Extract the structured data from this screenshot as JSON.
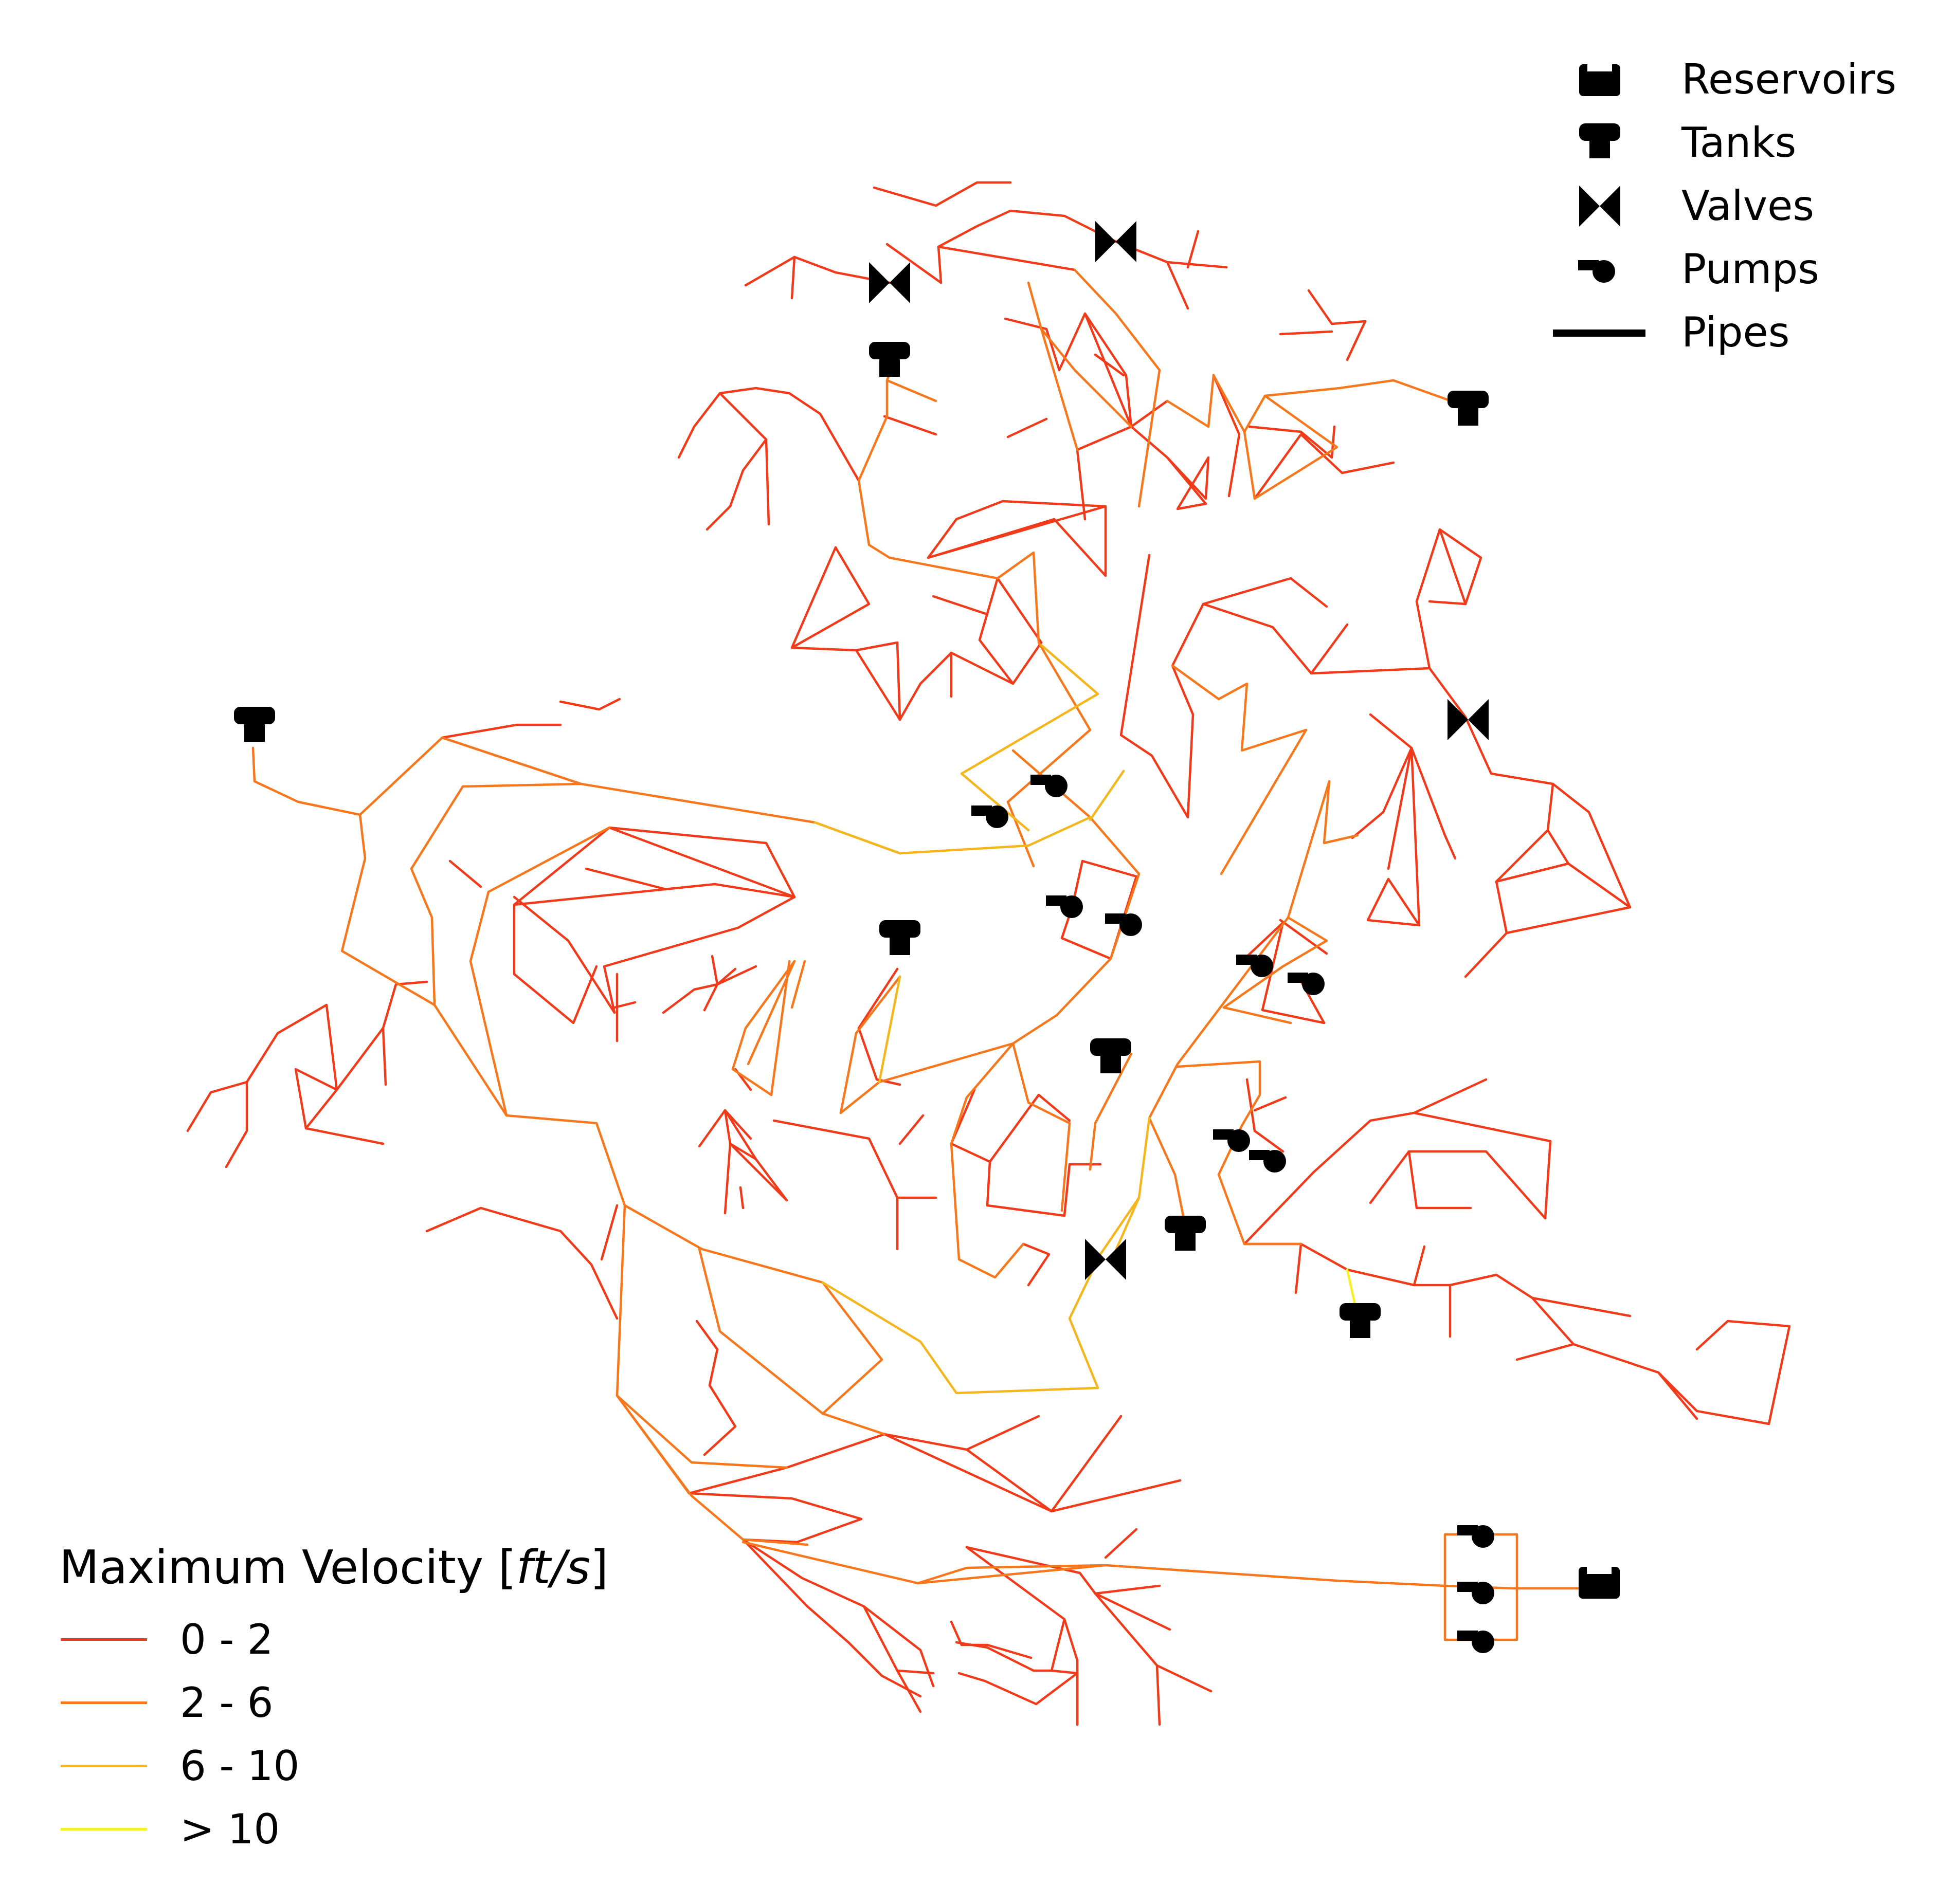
{
  "legend_symbols": {
    "reservoirs": {
      "label": "Reservoirs",
      "icon": "reservoir-icon"
    },
    "tanks": {
      "label": "Tanks",
      "icon": "tank-icon"
    },
    "valves": {
      "label": "Valves",
      "icon": "valve-icon"
    },
    "pumps": {
      "label": "Pumps",
      "icon": "pump-icon"
    },
    "pipes": {
      "label": "Pipes",
      "icon": "pipe-line-icon"
    }
  },
  "velocity_legend": {
    "title_prefix": "Maximum Velocity [",
    "title_unit": "ft/s",
    "title_suffix": "]",
    "classes": [
      {
        "label": "0 - 2",
        "color": "#f03a1a"
      },
      {
        "label": "2 - 6",
        "color": "#f7771c"
      },
      {
        "label": "6 - 10",
        "color": "#f5b61d"
      },
      {
        "label": "> 10",
        "color": "#f6f024"
      }
    ]
  },
  "colors": {
    "symbols": "#000000",
    "background": "#ffffff"
  }
}
